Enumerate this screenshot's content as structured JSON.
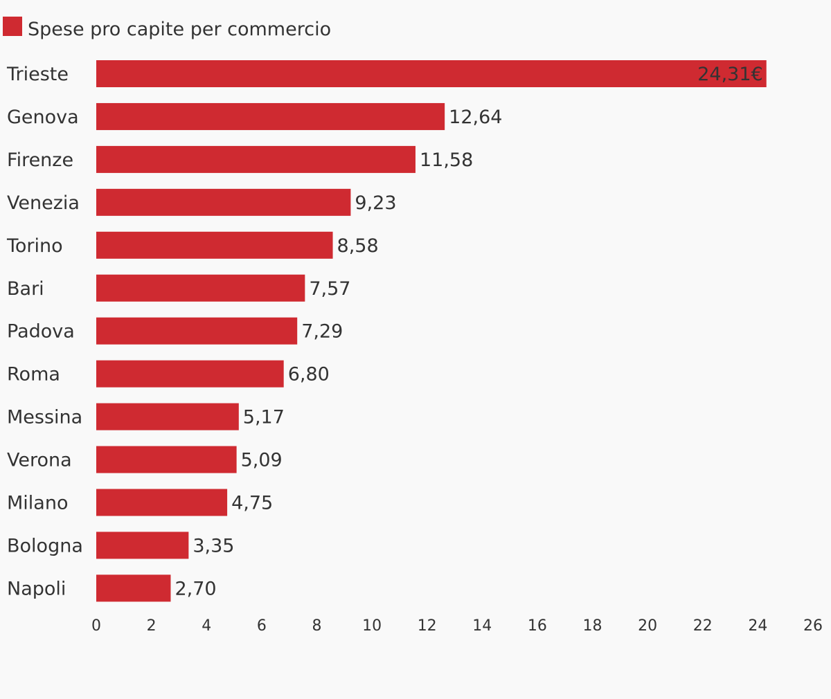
{
  "chart_data": {
    "type": "bar",
    "orientation": "horizontal",
    "title": "",
    "xlabel": "",
    "ylabel": "",
    "legend_placement": "top-left",
    "grid": false,
    "xlim": [
      0,
      26
    ],
    "x_ticks": [
      0,
      2,
      4,
      6,
      8,
      10,
      12,
      14,
      16,
      18,
      20,
      22,
      24,
      26
    ],
    "categories": [
      "Trieste",
      "Genova",
      "Firenze",
      "Venezia",
      "Torino",
      "Bari",
      "Padova",
      "Roma",
      "Messina",
      "Verona",
      "Milano",
      "Bologna",
      "Napoli"
    ],
    "series": [
      {
        "name": "Spese pro capite per commercio",
        "color": "#cf2a31",
        "values": [
          24.31,
          12.64,
          11.58,
          9.23,
          8.58,
          7.57,
          7.29,
          6.8,
          5.17,
          5.09,
          4.75,
          3.35,
          2.7
        ],
        "value_labels": [
          "24,31€",
          "12,64",
          "11,58",
          "9,23",
          "8,58",
          "7,57",
          "7,29",
          "6,80",
          "5,17",
          "5,09",
          "4,75",
          "3,35",
          "2,70"
        ]
      }
    ]
  }
}
